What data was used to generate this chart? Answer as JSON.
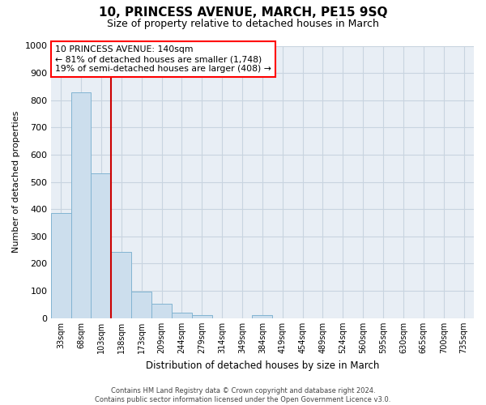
{
  "title": "10, PRINCESS AVENUE, MARCH, PE15 9SQ",
  "subtitle": "Size of property relative to detached houses in March",
  "xlabel": "Distribution of detached houses by size in March",
  "ylabel": "Number of detached properties",
  "bar_color": "#ccdeed",
  "bar_edge_color": "#82b4d2",
  "categories": [
    "33sqm",
    "68sqm",
    "103sqm",
    "138sqm",
    "173sqm",
    "209sqm",
    "244sqm",
    "279sqm",
    "314sqm",
    "349sqm",
    "384sqm",
    "419sqm",
    "454sqm",
    "489sqm",
    "524sqm",
    "560sqm",
    "595sqm",
    "630sqm",
    "665sqm",
    "700sqm",
    "735sqm"
  ],
  "values": [
    385,
    830,
    530,
    242,
    97,
    52,
    20,
    12,
    0,
    0,
    10,
    0,
    0,
    0,
    0,
    0,
    0,
    0,
    0,
    0,
    0
  ],
  "ylim": [
    0,
    1000
  ],
  "yticks": [
    0,
    100,
    200,
    300,
    400,
    500,
    600,
    700,
    800,
    900,
    1000
  ],
  "vline_color": "#cc0000",
  "vline_pos": 2.5,
  "annotation_line1": "10 PRINCESS AVENUE: 140sqm",
  "annotation_line2": "← 81% of detached houses are smaller (1,748)",
  "annotation_line3": "19% of semi-detached houses are larger (408) →",
  "footer_line1": "Contains HM Land Registry data © Crown copyright and database right 2024.",
  "footer_line2": "Contains public sector information licensed under the Open Government Licence v3.0.",
  "fig_bg_color": "#ffffff",
  "plot_bg_color": "#e8eef5",
  "grid_color": "#c8d4e0"
}
